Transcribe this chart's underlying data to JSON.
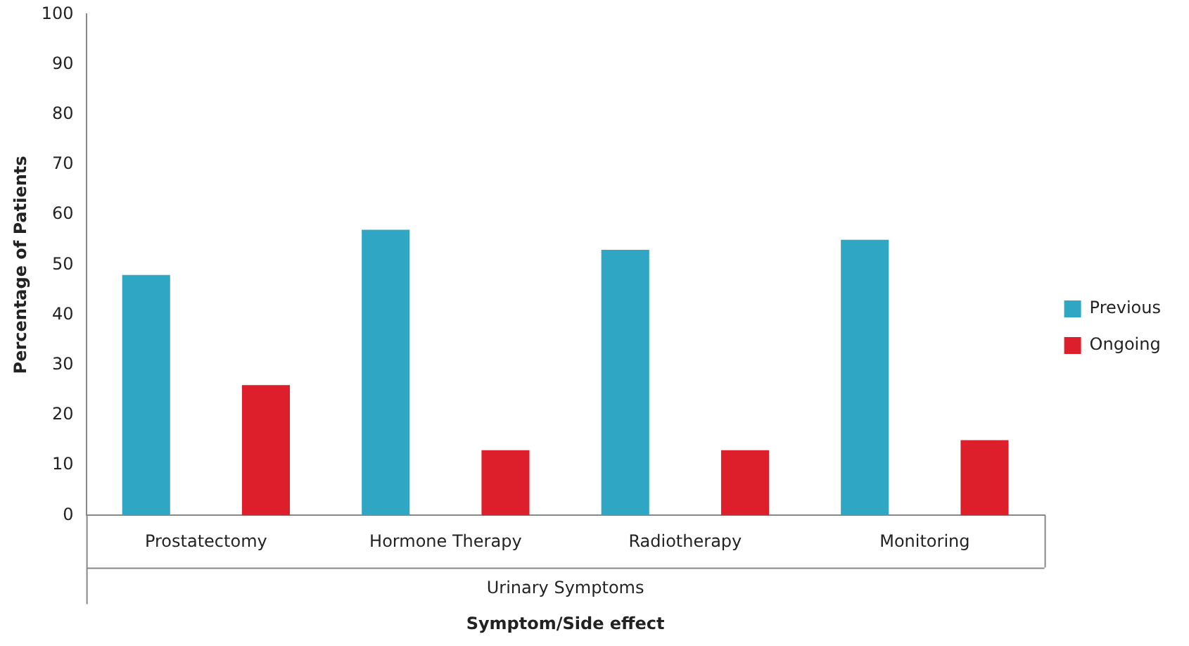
{
  "chart_data": {
    "type": "bar",
    "ylabel": "Percentage of Patients",
    "xlabel": "Symptom/Side effect",
    "categories": [
      "Prostatectomy",
      "Hormone Therapy",
      "Radiotherapy",
      "Monitoring"
    ],
    "series": [
      {
        "name": "Previous",
        "color": "#2ea6c4",
        "values": [
          48,
          57,
          53,
          55
        ]
      },
      {
        "name": "Ongoing",
        "color": "#dc1f2a",
        "values": [
          26,
          13,
          13,
          15
        ]
      }
    ],
    "ylim": [
      0,
      100
    ],
    "yticks": [
      0,
      10,
      20,
      30,
      40,
      50,
      60,
      70,
      80,
      90,
      100
    ],
    "grid": false,
    "legend": "right",
    "annotations": [
      "Urinary Symptoms"
    ]
  }
}
